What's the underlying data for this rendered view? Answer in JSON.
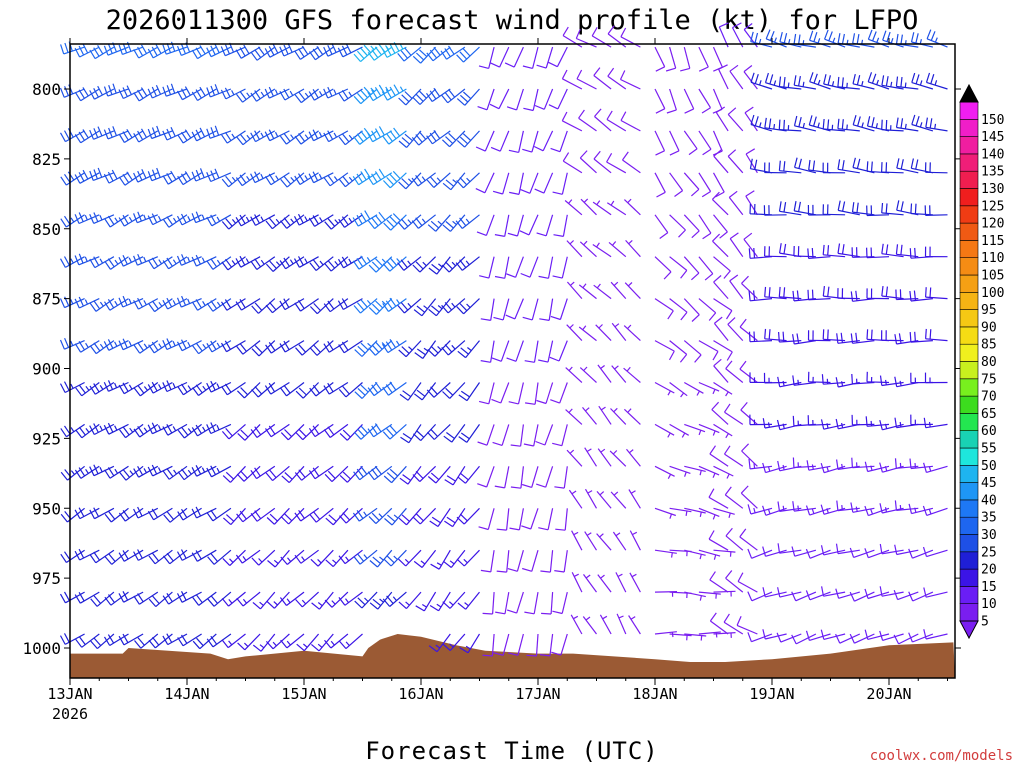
{
  "chart_data": {
    "type": "wind_barb_profile",
    "title": "2026011300 GFS forecast wind profile (kt) for LFPO",
    "xlabel": "Forecast Time (UTC)",
    "year_label": "2026",
    "x_ticks": [
      "13JAN",
      "14JAN",
      "15JAN",
      "16JAN",
      "17JAN",
      "18JAN",
      "19JAN",
      "20JAN"
    ],
    "x_range_days": [
      0,
      7.55
    ],
    "y_ticks": [
      800,
      825,
      850,
      875,
      900,
      925,
      950,
      975,
      1000
    ],
    "y_range_hpa": [
      780,
      1010
    ],
    "levels_hpa": [
      785,
      800,
      815,
      830,
      845,
      860,
      875,
      890,
      905,
      920,
      935,
      950,
      965,
      980,
      995
    ],
    "time_step_hours": 3,
    "periods": [
      {
        "t0": 0.0,
        "t1": 1.5,
        "speed_top": 30,
        "speed_bot": 20,
        "dir_top": 245,
        "dir_bot": 235
      },
      {
        "t0": 1.5,
        "t1": 2.55,
        "speed_top": 28,
        "speed_bot": 15,
        "dir_top": 240,
        "dir_bot": 225
      },
      {
        "t0": 2.55,
        "t1": 3.0,
        "speed_top": 45,
        "speed_bot": 22,
        "dir_top": 235,
        "dir_bot": 225
      },
      {
        "t0": 3.0,
        "t1": 3.55,
        "speed_top": 30,
        "speed_bot": 15,
        "dir_top": 230,
        "dir_bot": 215
      },
      {
        "t0": 3.55,
        "t1": 4.3,
        "speed_top": 12,
        "speed_bot": 8,
        "dir_top": 200,
        "dir_bot": 190
      },
      {
        "t0": 4.3,
        "t1": 5.0,
        "speed_top": 8,
        "speed_bot": 6,
        "dir_top": 300,
        "dir_bot": 330
      },
      {
        "t0": 5.0,
        "t1": 5.6,
        "speed_top": 8,
        "speed_bot": 7,
        "dir_top": 160,
        "dir_bot": 90
      },
      {
        "t0": 5.6,
        "t1": 6.0,
        "speed_top": 10,
        "speed_bot": 8,
        "dir_top": 330,
        "dir_bot": 300
      },
      {
        "t0": 6.0,
        "t1": 7.55,
        "speed_top": 25,
        "speed_bot": 10,
        "dir_top": 285,
        "dir_bot": 250
      }
    ],
    "terrain": {
      "color": "#9b5a34",
      "times_days": [
        0,
        0.45,
        0.5,
        1.2,
        1.35,
        1.5,
        2.0,
        2.5,
        2.55,
        2.65,
        2.8,
        3.0,
        3.3,
        3.55,
        4.0,
        4.3,
        5.0,
        5.3,
        5.6,
        6.0,
        6.5,
        7.0,
        7.55
      ],
      "surface_hpa": [
        1002,
        1002,
        1000,
        1002,
        1004,
        1003,
        1001,
        1003,
        1000,
        997,
        995,
        996,
        999,
        1001,
        1002,
        1002,
        1004,
        1005,
        1005,
        1004,
        1002,
        999,
        998
      ]
    },
    "colorbar": {
      "labels": [
        5,
        10,
        15,
        20,
        25,
        30,
        35,
        40,
        45,
        50,
        55,
        60,
        65,
        70,
        75,
        80,
        85,
        90,
        95,
        100,
        105,
        110,
        115,
        120,
        125,
        130,
        135,
        140,
        145,
        150
      ],
      "colors": [
        "#7a1ef0",
        "#6a1ef5",
        "#3b14e6",
        "#1f1fd6",
        "#1e50e6",
        "#1e66f0",
        "#1e78f5",
        "#1e96f5",
        "#1eb4f0",
        "#1ee6dc",
        "#19d2b4",
        "#23e650",
        "#3cdc1e",
        "#78f01e",
        "#c8f01e",
        "#f0f01e",
        "#f5dc14",
        "#f5c814",
        "#f5b414",
        "#f5a014",
        "#f58c14",
        "#f57814",
        "#f05a14",
        "#f03c14",
        "#f01e1e",
        "#f01e50",
        "#f01e78",
        "#f01ea0",
        "#f01ec8",
        "#f01ef0"
      ]
    },
    "credit": "coolwx.com/models"
  }
}
